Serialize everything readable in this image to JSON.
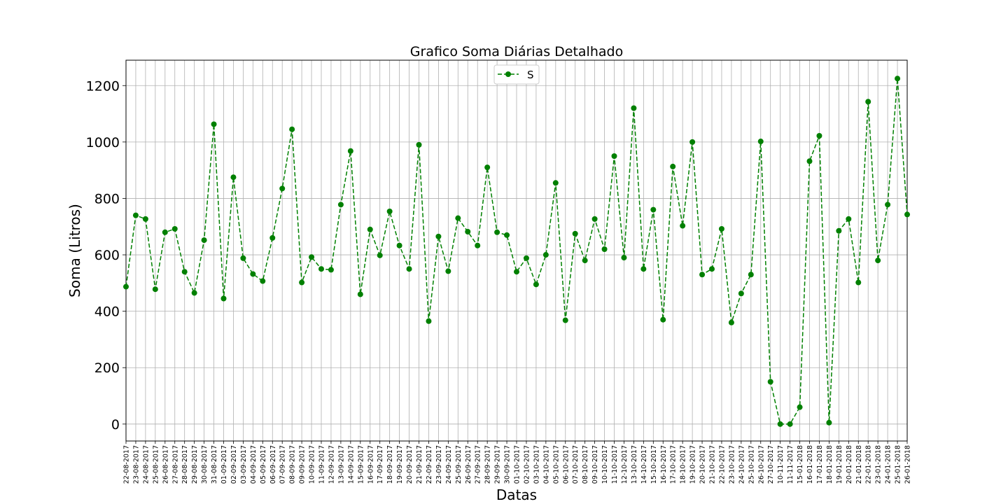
{
  "chart_data": {
    "type": "line",
    "title": "Grafico Soma Diárias Detalhado",
    "xlabel": "Datas",
    "ylabel": "Soma (Litros)",
    "ylim": [
      -60,
      1290
    ],
    "yticks": [
      0,
      200,
      400,
      600,
      800,
      1000,
      1200
    ],
    "grid": true,
    "legend_position": "top-center",
    "line_color": "#008000",
    "line_style": "dashed",
    "marker": "circle",
    "categories": [
      "22-08-2017",
      "23-08-2017",
      "24-08-2017",
      "25-08-2017",
      "26-08-2017",
      "27-08-2017",
      "28-08-2017",
      "29-08-2017",
      "30-08-2017",
      "31-08-2017",
      "01-09-2017",
      "02-09-2017",
      "03-09-2017",
      "04-09-2017",
      "05-09-2017",
      "06-09-2017",
      "07-09-2017",
      "08-09-2017",
      "09-09-2017",
      "10-09-2017",
      "11-09-2017",
      "12-09-2017",
      "13-09-2017",
      "14-09-2017",
      "15-09-2017",
      "16-09-2017",
      "17-09-2017",
      "18-09-2017",
      "19-09-2017",
      "20-09-2017",
      "21-09-2017",
      "22-09-2017",
      "23-09-2017",
      "24-09-2017",
      "25-09-2017",
      "26-09-2017",
      "27-09-2017",
      "28-09-2017",
      "29-09-2017",
      "30-09-2017",
      "01-10-2017",
      "02-10-2017",
      "03-10-2017",
      "04-10-2017",
      "05-10-2017",
      "06-10-2017",
      "07-10-2017",
      "08-10-2017",
      "09-10-2017",
      "10-10-2017",
      "11-10-2017",
      "12-10-2017",
      "13-10-2017",
      "14-10-2017",
      "15-10-2017",
      "16-10-2017",
      "17-10-2017",
      "18-10-2017",
      "19-10-2017",
      "20-10-2017",
      "21-10-2017",
      "22-10-2017",
      "23-10-2017",
      "24-10-2017",
      "25-10-2017",
      "26-10-2017",
      "27-10-2017",
      "10-11-2017",
      "11-11-2017",
      "15-01-2018",
      "16-01-2018",
      "17-01-2018",
      "18-01-2018",
      "19-01-2018",
      "20-01-2018",
      "21-01-2018",
      "22-01-2018",
      "23-01-2018",
      "24-01-2018",
      "25-01-2018",
      "26-01-2018"
    ],
    "series": [
      {
        "name": "S",
        "values": [
          487,
          740,
          727,
          478,
          680,
          692,
          540,
          465,
          652,
          1063,
          445,
          875,
          588,
          532,
          507,
          660,
          835,
          1045,
          502,
          592,
          550,
          547,
          778,
          968,
          460,
          690,
          598,
          754,
          633,
          550,
          990,
          365,
          665,
          542,
          730,
          682,
          633,
          910,
          680,
          670,
          540,
          588,
          495,
          600,
          855,
          368,
          675,
          580,
          727,
          620,
          950,
          590,
          1120,
          550,
          760,
          370,
          913,
          703,
          1000,
          530,
          550,
          692,
          360,
          463,
          530,
          1002,
          150,
          0,
          0,
          60,
          932,
          1022,
          5,
          685,
          727,
          502,
          1143,
          580,
          778,
          1225,
          743
        ]
      }
    ]
  }
}
